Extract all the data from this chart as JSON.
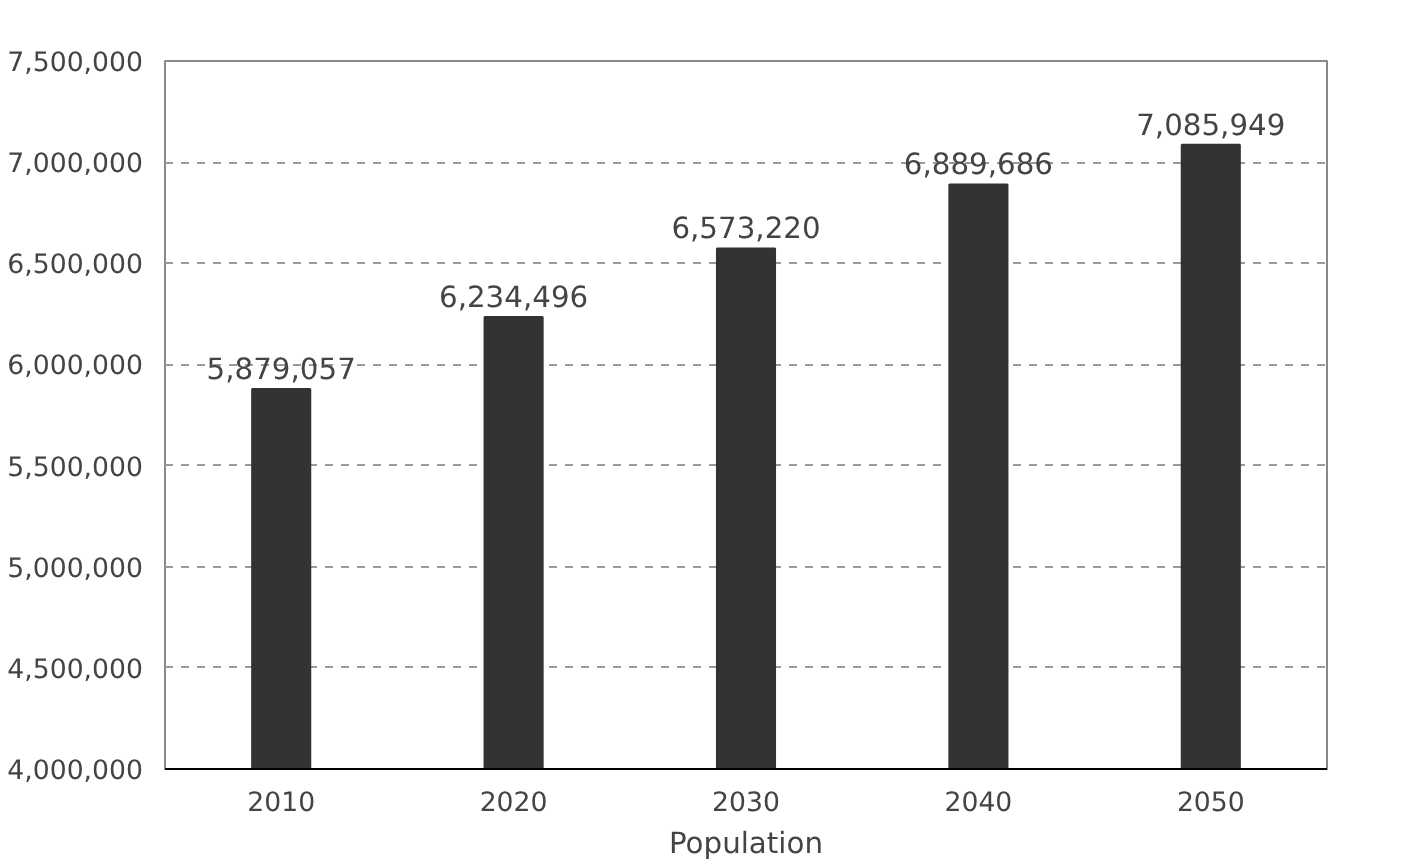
{
  "chart_data": {
    "type": "bar",
    "xlabel": "Population",
    "categories": [
      "2010",
      "2020",
      "2030",
      "2040",
      "2050"
    ],
    "values": [
      5879057,
      6234496,
      6573220,
      6889686,
      7085949
    ],
    "value_labels": [
      "5,879,057",
      "6,234,496",
      "6,573,220",
      "6,889,686",
      "7,085,949"
    ],
    "color": "#333333",
    "ylim": [
      4000000,
      7500000
    ],
    "yticks": [
      {
        "value": 4000000,
        "label": "4,000,000"
      },
      {
        "value": 4500000,
        "label": "4,500,000"
      },
      {
        "value": 5000000,
        "label": "5,000,000"
      },
      {
        "value": 5500000,
        "label": "5,500,000"
      },
      {
        "value": 6000000,
        "label": "6,000,000"
      },
      {
        "value": 6500000,
        "label": "6,500,000"
      },
      {
        "value": 7000000,
        "label": "7,000,000"
      },
      {
        "value": 7500000,
        "label": "7,500,000"
      }
    ],
    "grid": "y"
  }
}
